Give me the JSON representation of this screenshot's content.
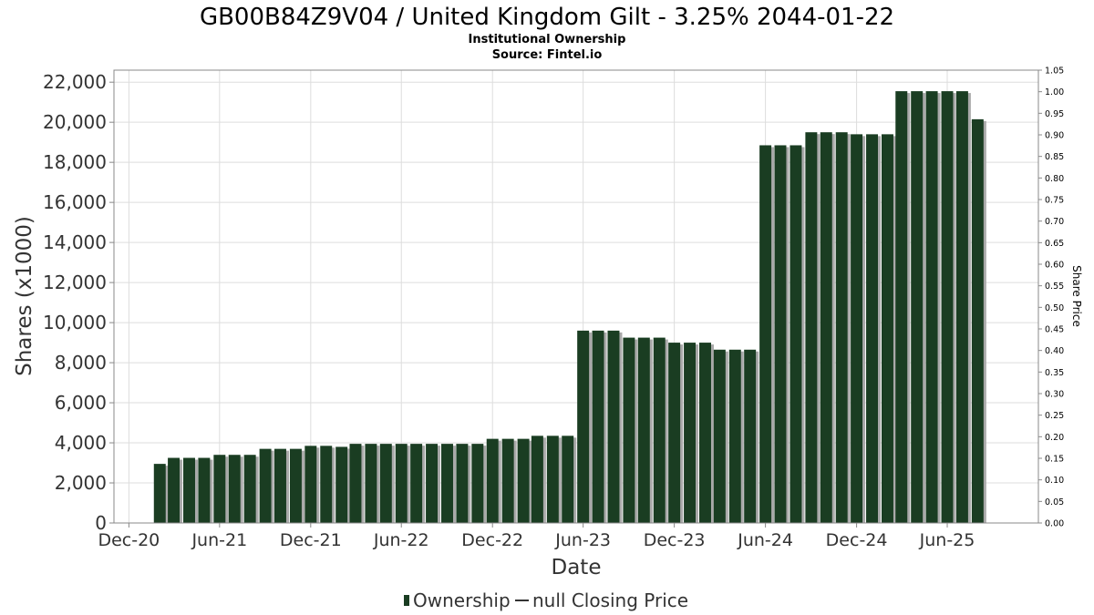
{
  "chart_data": {
    "type": "bar",
    "title": "GB00B84Z9V04 / United Kingdom Gilt - 3.25% 2044-01-22",
    "subtitle_lines": [
      "Institutional Ownership",
      "Source: Fintel.io"
    ],
    "xlabel": "Date",
    "ylabel": "Shares (x1000)",
    "y2label": "Share Price",
    "ylim": [
      0,
      22600
    ],
    "y_ticks": [
      0,
      2000,
      4000,
      6000,
      8000,
      10000,
      12000,
      14000,
      16000,
      18000,
      20000,
      22000
    ],
    "y_tick_labels": [
      "0",
      "2,000",
      "4,000",
      "6,000",
      "8,000",
      "10,000",
      "12,000",
      "14,000",
      "16,000",
      "18,000",
      "20,000",
      "22,000"
    ],
    "y2lim": [
      0,
      1.05
    ],
    "y2_tick_labels": [
      "0.00",
      "0.05",
      "0.10",
      "0.15",
      "0.20",
      "0.25",
      "0.30",
      "0.35",
      "0.40",
      "0.45",
      "0.50",
      "0.55",
      "0.60",
      "0.65",
      "0.70",
      "0.75",
      "0.80",
      "0.85",
      "0.90",
      "0.95",
      "1.00",
      "1.05"
    ],
    "x_range": [
      "2020-11-01",
      "2025-12-01"
    ],
    "x_ticks": [
      "2020-12-01",
      "2021-06-01",
      "2021-12-01",
      "2022-06-01",
      "2022-12-01",
      "2023-06-01",
      "2023-12-01",
      "2024-06-01",
      "2024-12-01",
      "2025-06-01"
    ],
    "x_tick_labels": [
      "Dec-20",
      "Jun-21",
      "Dec-21",
      "Jun-22",
      "Dec-22",
      "Jun-23",
      "Dec-23",
      "Jun-24",
      "Dec-24",
      "Jun-25"
    ],
    "grid": true,
    "series": [
      {
        "name": "Ownership",
        "color": "#1a3d22",
        "x": [
          "2021-02-01",
          "2021-03-01",
          "2021-04-01",
          "2021-05-01",
          "2021-06-01",
          "2021-07-01",
          "2021-08-01",
          "2021-09-01",
          "2021-10-01",
          "2021-11-01",
          "2021-12-01",
          "2022-01-01",
          "2022-02-01",
          "2022-03-01",
          "2022-04-01",
          "2022-05-01",
          "2022-06-01",
          "2022-07-01",
          "2022-08-01",
          "2022-09-01",
          "2022-10-01",
          "2022-11-01",
          "2022-12-01",
          "2023-01-01",
          "2023-02-01",
          "2023-03-01",
          "2023-04-01",
          "2023-05-01",
          "2023-06-01",
          "2023-07-01",
          "2023-08-01",
          "2023-09-01",
          "2023-10-01",
          "2023-11-01",
          "2023-12-01",
          "2024-01-01",
          "2024-02-01",
          "2024-03-01",
          "2024-04-01",
          "2024-05-01",
          "2024-06-01",
          "2024-07-01",
          "2024-08-01",
          "2024-09-01",
          "2024-10-01",
          "2024-11-01",
          "2024-12-01",
          "2025-01-01",
          "2025-02-01",
          "2025-03-01",
          "2025-04-01",
          "2025-05-01",
          "2025-06-01",
          "2025-07-01",
          "2025-08-01"
        ],
        "values": [
          2950,
          3250,
          3250,
          3250,
          3400,
          3400,
          3400,
          3700,
          3700,
          3700,
          3850,
          3850,
          3800,
          3950,
          3950,
          3950,
          3950,
          3950,
          3950,
          3950,
          3950,
          3950,
          4200,
          4200,
          4200,
          4350,
          4350,
          4350,
          9600,
          9600,
          9600,
          9250,
          9250,
          9250,
          9000,
          9000,
          9000,
          8650,
          8650,
          8650,
          18850,
          18850,
          18850,
          19500,
          19500,
          19500,
          19400,
          19400,
          19400,
          21550,
          21550,
          21550,
          21550,
          21550,
          20150
        ]
      },
      {
        "name": "null Closing Price",
        "color": "#333333",
        "values": []
      }
    ],
    "legend_placement": "bottom-center"
  }
}
